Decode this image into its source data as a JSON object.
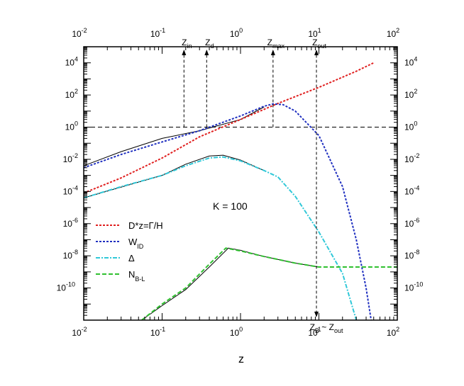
{
  "chart_data": {
    "type": "line",
    "title": "",
    "xlabel": "z",
    "ylabel": "",
    "x_scale": "log",
    "y_scale": "log",
    "xlim": [
      0.01,
      100
    ],
    "ylim": [
      1e-12,
      100000.0
    ],
    "grid": false,
    "x_ticks": [
      "10-2",
      "10-1",
      "100",
      "101",
      "102"
    ],
    "y_ticks": [
      "10-10",
      "10-8",
      "10-6",
      "10-4",
      "10-2",
      "100",
      "102",
      "104"
    ],
    "annotation_K": "K = 100",
    "markers": [
      {
        "label": "Z",
        "sub": "in",
        "z": 0.19,
        "direction": "up"
      },
      {
        "label": "Z",
        "sub": "d",
        "z": 0.37,
        "direction": "up"
      },
      {
        "label": "Z",
        "sub": "max",
        "z": 2.6,
        "direction": "up"
      },
      {
        "label": "Z",
        "sub": "out",
        "z": 9.3,
        "direction": "up"
      },
      {
        "label": "Z",
        "sub": "B",
        "label2": "~ Z",
        "sub2": "out",
        "z": 9.3,
        "direction": "down"
      }
    ],
    "reference_line_y": 1,
    "legend": {
      "position": "left",
      "entries": [
        {
          "label": "D*z=Γ/H",
          "sub": "",
          "color": "#e02020",
          "dash": "3,2"
        },
        {
          "label": "W",
          "sub": "ID",
          "color": "#2030c0",
          "dash": "3,2"
        },
        {
          "label": "Δ",
          "sub": "",
          "color": "#30c8d8",
          "dash": "6,2,2,2"
        },
        {
          "label": "N",
          "sub": "B-L",
          "color": "#30c030",
          "dash": "6,3"
        }
      ]
    },
    "series": [
      {
        "name": "D*z=Γ/H",
        "color": "#e02020",
        "dash": "3,2",
        "points": [
          [
            0.01,
            8e-05
          ],
          [
            0.03,
            0.0007
          ],
          [
            0.1,
            0.012
          ],
          [
            0.3,
            0.25
          ],
          [
            1,
            3
          ],
          [
            3,
            30
          ],
          [
            10,
            300
          ],
          [
            30,
            3000
          ],
          [
            50,
            10000
          ]
        ]
      },
      {
        "name": "W_ID",
        "color": "#2030c0",
        "dash": "3,2",
        "points": [
          [
            0.01,
            0.003
          ],
          [
            0.03,
            0.02
          ],
          [
            0.1,
            0.12
          ],
          [
            0.3,
            0.6
          ],
          [
            1,
            5
          ],
          [
            2,
            20
          ],
          [
            2.6,
            28
          ],
          [
            3.5,
            25
          ],
          [
            5,
            10
          ],
          [
            10,
            0.3
          ],
          [
            20,
            0.0002
          ],
          [
            30,
            1e-07
          ],
          [
            40,
            1e-10
          ],
          [
            50,
            1e-13
          ]
        ]
      },
      {
        "name": "Δ",
        "color": "#30c8d8",
        "dash": "6,2,2,2",
        "points": [
          [
            0.01,
            4e-05
          ],
          [
            0.03,
            0.0002
          ],
          [
            0.1,
            0.001
          ],
          [
            0.2,
            0.004
          ],
          [
            0.4,
            0.012
          ],
          [
            0.6,
            0.014
          ],
          [
            1,
            0.008
          ],
          [
            2,
            0.002
          ],
          [
            3,
            0.0008
          ],
          [
            5,
            5e-05
          ],
          [
            10,
            3e-07
          ],
          [
            20,
            8e-10
          ],
          [
            30,
            1e-12
          ]
        ]
      },
      {
        "name": "N_B-L",
        "color": "#30c030",
        "dash": "6,3",
        "points": [
          [
            0.055,
            1e-12
          ],
          [
            0.1,
            1e-11
          ],
          [
            0.2,
            1e-10
          ],
          [
            0.4,
            3e-09
          ],
          [
            0.65,
            3e-08
          ],
          [
            1,
            2e-08
          ],
          [
            2,
            9e-09
          ],
          [
            5,
            3.5e-09
          ],
          [
            10,
            2e-09
          ],
          [
            30,
            2e-09
          ],
          [
            100,
            2e-09
          ]
        ]
      }
    ],
    "reference_curves": [
      {
        "points": [
          [
            0.01,
            0.004
          ],
          [
            0.03,
            0.03
          ],
          [
            0.1,
            0.2
          ],
          [
            0.3,
            0.6
          ],
          [
            1,
            3
          ],
          [
            2,
            18
          ]
        ]
      },
      {
        "points": [
          [
            0.01,
            4e-05
          ],
          [
            0.1,
            0.001
          ],
          [
            0.2,
            0.005
          ],
          [
            0.4,
            0.016
          ],
          [
            0.6,
            0.018
          ],
          [
            1,
            0.009
          ],
          [
            2,
            0.002
          ]
        ]
      },
      {
        "points": [
          [
            0.055,
            1e-12
          ],
          [
            0.1,
            8e-12
          ],
          [
            0.2,
            8e-11
          ],
          [
            0.4,
            2e-09
          ],
          [
            0.7,
            3e-08
          ],
          [
            1,
            2.2e-08
          ],
          [
            2,
            9e-09
          ],
          [
            5,
            3.5e-09
          ],
          [
            10,
            2e-09
          ]
        ]
      }
    ]
  }
}
